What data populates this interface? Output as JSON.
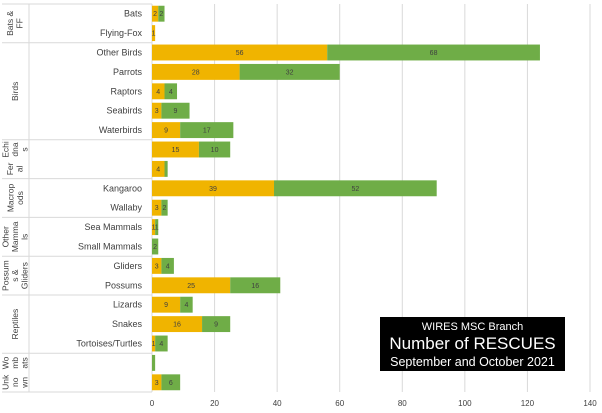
{
  "chart_data": {
    "type": "bar",
    "orientation": "horizontal",
    "stacked": true,
    "title_lines": [
      "WIRES MSC Branch",
      "Number of RESCUES",
      "September and October 2021"
    ],
    "xlim": [
      0,
      140
    ],
    "xticks": [
      "0",
      "20",
      "40",
      "60",
      "80",
      "100",
      "120",
      "140"
    ],
    "grid": true,
    "colors": {
      "series1": "#f0b400",
      "series2": "#6fad47",
      "grid": "#d9d9d9",
      "text": "#404040"
    },
    "groups": [
      {
        "label": "Bats & FF",
        "lines": [
          "Bats &",
          "FF"
        ]
      },
      {
        "label": "Birds",
        "lines": [
          "Birds"
        ]
      },
      {
        "label": "Echidnas / Ferals",
        "lines": [
          "Echi",
          "dna",
          "s"
        ],
        "lines2": [
          "Fer",
          "al"
        ]
      },
      {
        "label": "Macropods",
        "lines": [
          "Macrop",
          "ods"
        ]
      },
      {
        "label": "Other Mammals",
        "lines": [
          "Other",
          "Mamma",
          "ls"
        ]
      },
      {
        "label": "Possums & Gliders",
        "lines": [
          "Possum",
          "s &",
          "Gliders"
        ]
      },
      {
        "label": "Reptiles",
        "lines": [
          "Reptiles"
        ]
      },
      {
        "label": "Wombats / Unknown",
        "lines": [
          "Wo",
          "mb",
          "ats"
        ],
        "lines2": [
          "Unk",
          "no",
          "wn"
        ]
      }
    ],
    "categories": [
      "Bats",
      "Flying-Fox",
      "Other Birds",
      "Parrots",
      "Raptors",
      "Seabirds",
      "Waterbirds",
      "",
      "",
      "Kangaroo",
      "Wallaby",
      "Sea Mammals",
      "Small Mammals",
      "Gliders",
      "Possums",
      "Lizards",
      "Snakes",
      "Tortoises/Turtles",
      "",
      ""
    ],
    "series": [
      {
        "values": [
          2,
          1,
          56,
          28,
          4,
          3,
          9,
          15,
          4,
          39,
          3,
          1,
          0,
          3,
          25,
          9,
          16,
          1,
          0,
          3
        ]
      },
      {
        "values": [
          2,
          0,
          68,
          32,
          4,
          9,
          17,
          10,
          1,
          52,
          2,
          1,
          2,
          4,
          16,
          4,
          9,
          4,
          1,
          6
        ]
      }
    ],
    "labels1": [
      "2",
      "1",
      "56",
      "28",
      "4",
      "3",
      "9",
      "15",
      "4",
      "39",
      "3",
      "1",
      "",
      "3",
      "25",
      "9",
      "16",
      "1",
      "",
      "3"
    ],
    "labels2": [
      "2",
      "",
      "68",
      "32",
      "4",
      "9",
      "17",
      "10",
      "",
      "52",
      "2",
      "1",
      "2",
      "4",
      "16",
      "4",
      "9",
      "4",
      "",
      "6"
    ]
  }
}
